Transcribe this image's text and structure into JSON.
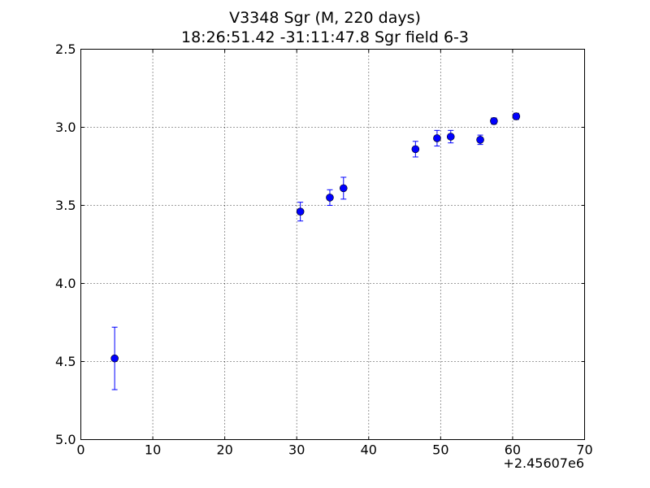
{
  "chart_data": {
    "type": "scatter",
    "title": "V3348 Sgr  (M, 220 days)",
    "subtitle": "18:26:51.42 -31:11:47.8 Sgr field 6-3",
    "xlabel": "",
    "ylabel": "",
    "x_offset_label": "+2.45607e6",
    "xlim": [
      0,
      70
    ],
    "ylim": [
      5.0,
      2.5
    ],
    "y_inverted": true,
    "grid": true,
    "x_ticks": [
      0,
      10,
      20,
      30,
      40,
      50,
      60,
      70
    ],
    "x_tick_labels": [
      "0",
      "10",
      "20",
      "30",
      "40",
      "50",
      "60",
      "70"
    ],
    "y_ticks": [
      2.5,
      3.0,
      3.5,
      4.0,
      4.5,
      5.0
    ],
    "y_tick_labels": [
      "2.5",
      "3.0",
      "3.5",
      "4.0",
      "4.5",
      "5.0"
    ],
    "marker_color": "#0000ff",
    "series": [
      {
        "x": [
          4.7,
          30.5,
          34.6,
          36.5,
          46.5,
          49.5,
          51.4,
          55.5,
          57.4,
          60.5
        ],
        "y": [
          4.48,
          3.54,
          3.45,
          3.39,
          3.14,
          3.07,
          3.06,
          3.08,
          2.96,
          2.93
        ],
        "err": [
          0.2,
          0.06,
          0.05,
          0.07,
          0.05,
          0.05,
          0.04,
          0.03,
          0.02,
          0.02
        ]
      }
    ]
  }
}
